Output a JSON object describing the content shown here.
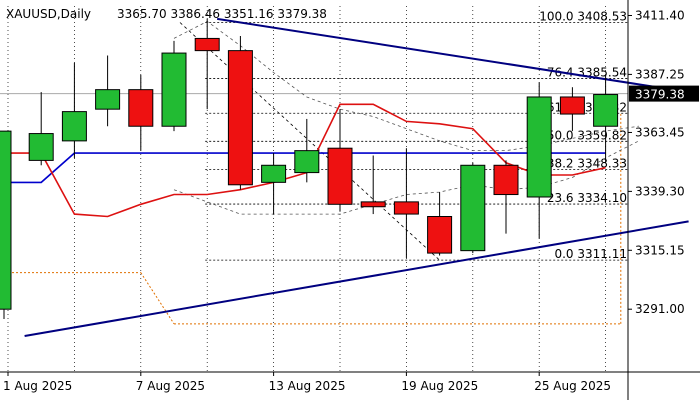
{
  "symbol_header": {
    "symbol": "XAUUSD,Daily",
    "ohlc": "3365.70 3386.46 3351.16 3379.38"
  },
  "chart_data": {
    "type": "candlestick",
    "symbol": "XAUUSD",
    "timeframe": "Daily",
    "ylim": [
      3280,
      3418
    ],
    "current_price": "3379.38",
    "y_ticks": [
      {
        "value": 3411.4,
        "label": "3411.40"
      },
      {
        "value": 3387.25,
        "label": "3387.25"
      },
      {
        "value": 3363.45,
        "label": "3363.45"
      },
      {
        "value": 3339.3,
        "label": "3339.30"
      },
      {
        "value": 3315.15,
        "label": "3315.15"
      },
      {
        "value": 3291.0,
        "label": "3291.00"
      }
    ],
    "x_ticks": [
      {
        "index": 0,
        "label": "1 Aug 2025"
      },
      {
        "index": 4,
        "label": "7 Aug 2025"
      },
      {
        "index": 8,
        "label": "13 Aug 2025"
      },
      {
        "index": 12,
        "label": "19 Aug 2025"
      },
      {
        "index": 16,
        "label": "25 Aug 2025"
      }
    ],
    "candles": [
      {
        "open": 3291,
        "high": 3364,
        "low": 3287,
        "close": 3364
      },
      {
        "open": 3352,
        "high": 3380,
        "low": 3350,
        "close": 3363
      },
      {
        "open": 3360,
        "high": 3392,
        "low": 3353,
        "close": 3372
      },
      {
        "open": 3373,
        "high": 3395,
        "low": 3366,
        "close": 3381
      },
      {
        "open": 3381,
        "high": 3387,
        "low": 3356,
        "close": 3366
      },
      {
        "open": 3366,
        "high": 3401,
        "low": 3364,
        "close": 3396
      },
      {
        "open": 3402,
        "high": 3410,
        "low": 3373,
        "close": 3397
      },
      {
        "open": 3397,
        "high": 3403,
        "low": 3340,
        "close": 3342
      },
      {
        "open": 3343,
        "high": 3355,
        "low": 3330,
        "close": 3350
      },
      {
        "open": 3347,
        "high": 3369,
        "low": 3343,
        "close": 3356
      },
      {
        "open": 3357,
        "high": 3373,
        "low": 3331,
        "close": 3334
      },
      {
        "open": 3335,
        "high": 3354,
        "low": 3330,
        "close": 3333
      },
      {
        "open": 3335,
        "high": 3357,
        "low": 3312,
        "close": 3330
      },
      {
        "open": 3329,
        "high": 3339,
        "low": 3313,
        "close": 3314
      },
      {
        "open": 3315,
        "high": 3351,
        "low": 3314,
        "close": 3350
      },
      {
        "open": 3350,
        "high": 3352,
        "low": 3322,
        "close": 3338
      },
      {
        "open": 3337,
        "high": 3384,
        "low": 3320,
        "close": 3378
      },
      {
        "open": 3378,
        "high": 3382,
        "low": 3364,
        "close": 3371
      },
      {
        "open": 3366,
        "high": 3387,
        "low": 3351,
        "close": 3379
      }
    ],
    "ma_red": [
      3355,
      3355,
      3330,
      3329,
      3334,
      3338,
      3338,
      3340,
      3343,
      3347,
      3375,
      3375,
      3368,
      3367,
      3365,
      3351,
      3346,
      3346,
      3349
    ],
    "ma_blue": [
      3343,
      3343,
      3355,
      3355,
      3355,
      3355,
      3355,
      3355,
      3355,
      3355,
      3355,
      3355,
      3355,
      3355,
      3355,
      3355,
      3355,
      3355,
      3355
    ],
    "ichimoku_upper_dashed": [
      null,
      null,
      null,
      null,
      null,
      3402,
      3409,
      3399,
      3388,
      3378,
      3373,
      3370,
      3365,
      3360,
      3356,
      3356,
      3358,
      3361,
      3364,
      3366
    ],
    "ichimoku_lower_dashed": [
      null,
      null,
      null,
      null,
      null,
      3340,
      3335,
      3330,
      3330,
      3330,
      3330,
      3334,
      3338,
      3339,
      3342,
      3340,
      3341,
      3345,
      3353,
      3360
    ],
    "orange_dotted_box": {
      "upper": 3306,
      "lower": 3285,
      "start_index": 0,
      "end_index": 19
    },
    "fibonacci": {
      "levels": [
        {
          "value": 3408.53,
          "label": "100.0 3408.53"
        },
        {
          "value": 3385.54,
          "label": "76.4 3385.54"
        },
        {
          "value": 3371.32,
          "label": "61.8 3371.32"
        },
        {
          "value": 3359.82,
          "label": "50.0 3359.82"
        },
        {
          "value": 3348.33,
          "label": "38.2 3348.33"
        },
        {
          "value": 3334.1,
          "label": "23.6 3334.10"
        },
        {
          "value": 3311.11,
          "label": "0.0 3311.11"
        }
      ]
    },
    "trendlines": [
      {
        "from": {
          "index": 6.3,
          "value": 3410
        },
        "to": {
          "index": 20.5,
          "value": 3380
        }
      },
      {
        "from": {
          "index": 0.5,
          "value": 3280
        },
        "to": {
          "index": 20.5,
          "value": 3327
        }
      }
    ],
    "colors": {
      "bull": "#22bb33",
      "bear": "#ee1111",
      "ma_red": "#dd1111",
      "ma_blue": "#0000cc",
      "trendline": "#000080",
      "fib": "#000000",
      "box": "#e07000",
      "current_price_bg": "#000000"
    }
  }
}
